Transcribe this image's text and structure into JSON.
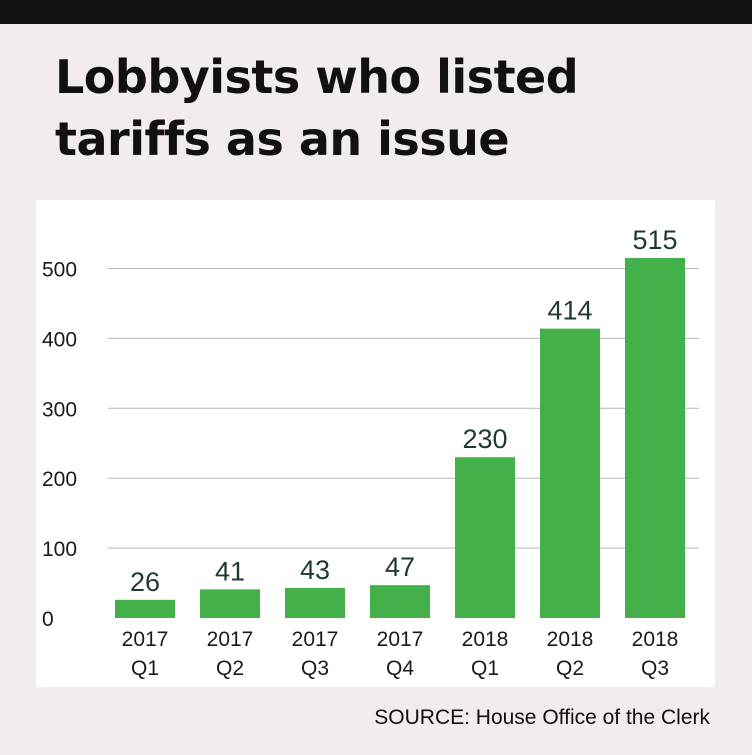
{
  "title": "Lobbyists who listed tariffs as an issue",
  "source": "SOURCE: House Office of the Clerk",
  "colors": {
    "bar": "#44b04a",
    "label": "#1e3a33",
    "grid": "#b8b8b8",
    "axis_text": "#1a1a1a",
    "background": "#f3ecec",
    "header_rule": "#111111"
  },
  "chart_data": {
    "type": "bar",
    "title": "Lobbyists who listed tariffs as an issue",
    "xlabel": "",
    "ylabel": "",
    "categories": [
      [
        "2017",
        "Q1"
      ],
      [
        "2017",
        "Q2"
      ],
      [
        "2017",
        "Q3"
      ],
      [
        "2017",
        "Q4"
      ],
      [
        "2018",
        "Q1"
      ],
      [
        "2018",
        "Q2"
      ],
      [
        "2018",
        "Q3"
      ]
    ],
    "values": [
      26,
      41,
      43,
      47,
      230,
      414,
      515
    ],
    "data_labels": [
      "26",
      "41",
      "43",
      "47",
      "230",
      "414",
      "515"
    ],
    "yticks": [
      0,
      100,
      200,
      300,
      400,
      500
    ],
    "ytick_labels": [
      "0",
      "100",
      "200",
      "300",
      "400",
      "500"
    ],
    "ylim": [
      0,
      515
    ],
    "grid": true,
    "legend": "none"
  }
}
